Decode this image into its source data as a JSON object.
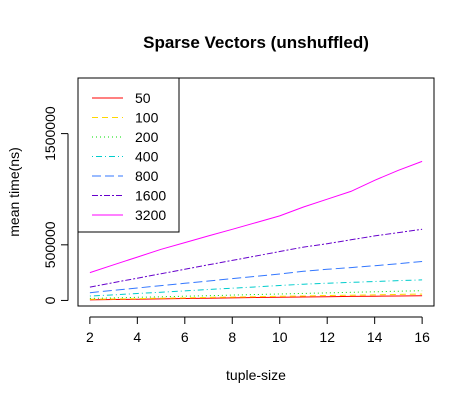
{
  "chart_data": {
    "type": "line",
    "title": "Sparse Vectors (unshuffled)",
    "xlabel": "tuple-size",
    "ylabel": "mean time(ns)",
    "x": [
      2,
      3,
      4,
      5,
      6,
      7,
      8,
      9,
      10,
      11,
      12,
      13,
      14,
      15,
      16
    ],
    "xlim": [
      1.5,
      16.5
    ],
    "ylim": [
      -50000,
      2000000
    ],
    "xticks": [
      "2",
      "4",
      "6",
      "8",
      "10",
      "12",
      "14",
      "16"
    ],
    "yticks": [
      "0",
      "500000",
      "1500000"
    ],
    "legend_position": "top-left",
    "grid": false,
    "series": [
      {
        "name": "50",
        "color": "#FF0000",
        "dash": "",
        "values": [
          5000,
          8000,
          11000,
          14000,
          17000,
          20000,
          23000,
          26000,
          28000,
          31000,
          34000,
          36000,
          38000,
          40000,
          42000
        ]
      },
      {
        "name": "100",
        "color": "#FFD700",
        "dash": "6,4",
        "values": [
          10000,
          13000,
          16000,
          20000,
          23000,
          27000,
          30000,
          34000,
          37000,
          40000,
          44000,
          47000,
          50000,
          54000,
          57000
        ]
      },
      {
        "name": "200",
        "color": "#00DD00",
        "dash": "1,3",
        "values": [
          18000,
          23000,
          28000,
          33000,
          38000,
          43000,
          48000,
          53000,
          58000,
          63000,
          68000,
          73000,
          78000,
          83000,
          88000
        ]
      },
      {
        "name": "400",
        "color": "#00CCCC",
        "dash": "1,3,6,3",
        "values": [
          40000,
          50000,
          62000,
          74000,
          86000,
          98000,
          110000,
          122000,
          134000,
          146000,
          155000,
          162000,
          170000,
          178000,
          185000
        ]
      },
      {
        "name": "800",
        "color": "#3377FF",
        "dash": "9,4",
        "values": [
          70000,
          91000,
          112000,
          133000,
          154000,
          175000,
          196000,
          217000,
          238000,
          262000,
          280000,
          295000,
          312000,
          330000,
          350000
        ]
      },
      {
        "name": "1600",
        "color": "#6600CC",
        "dash": "6,2,2,2",
        "values": [
          120000,
          160000,
          200000,
          240000,
          280000,
          320000,
          360000,
          400000,
          440000,
          480000,
          510000,
          545000,
          580000,
          610000,
          640000
        ]
      },
      {
        "name": "3200",
        "color": "#FF00FF",
        "dash": "",
        "values": [
          250000,
          320000,
          390000,
          460000,
          520000,
          580000,
          640000,
          700000,
          760000,
          840000,
          910000,
          980000,
          1080000,
          1170000,
          1250000
        ]
      }
    ]
  }
}
